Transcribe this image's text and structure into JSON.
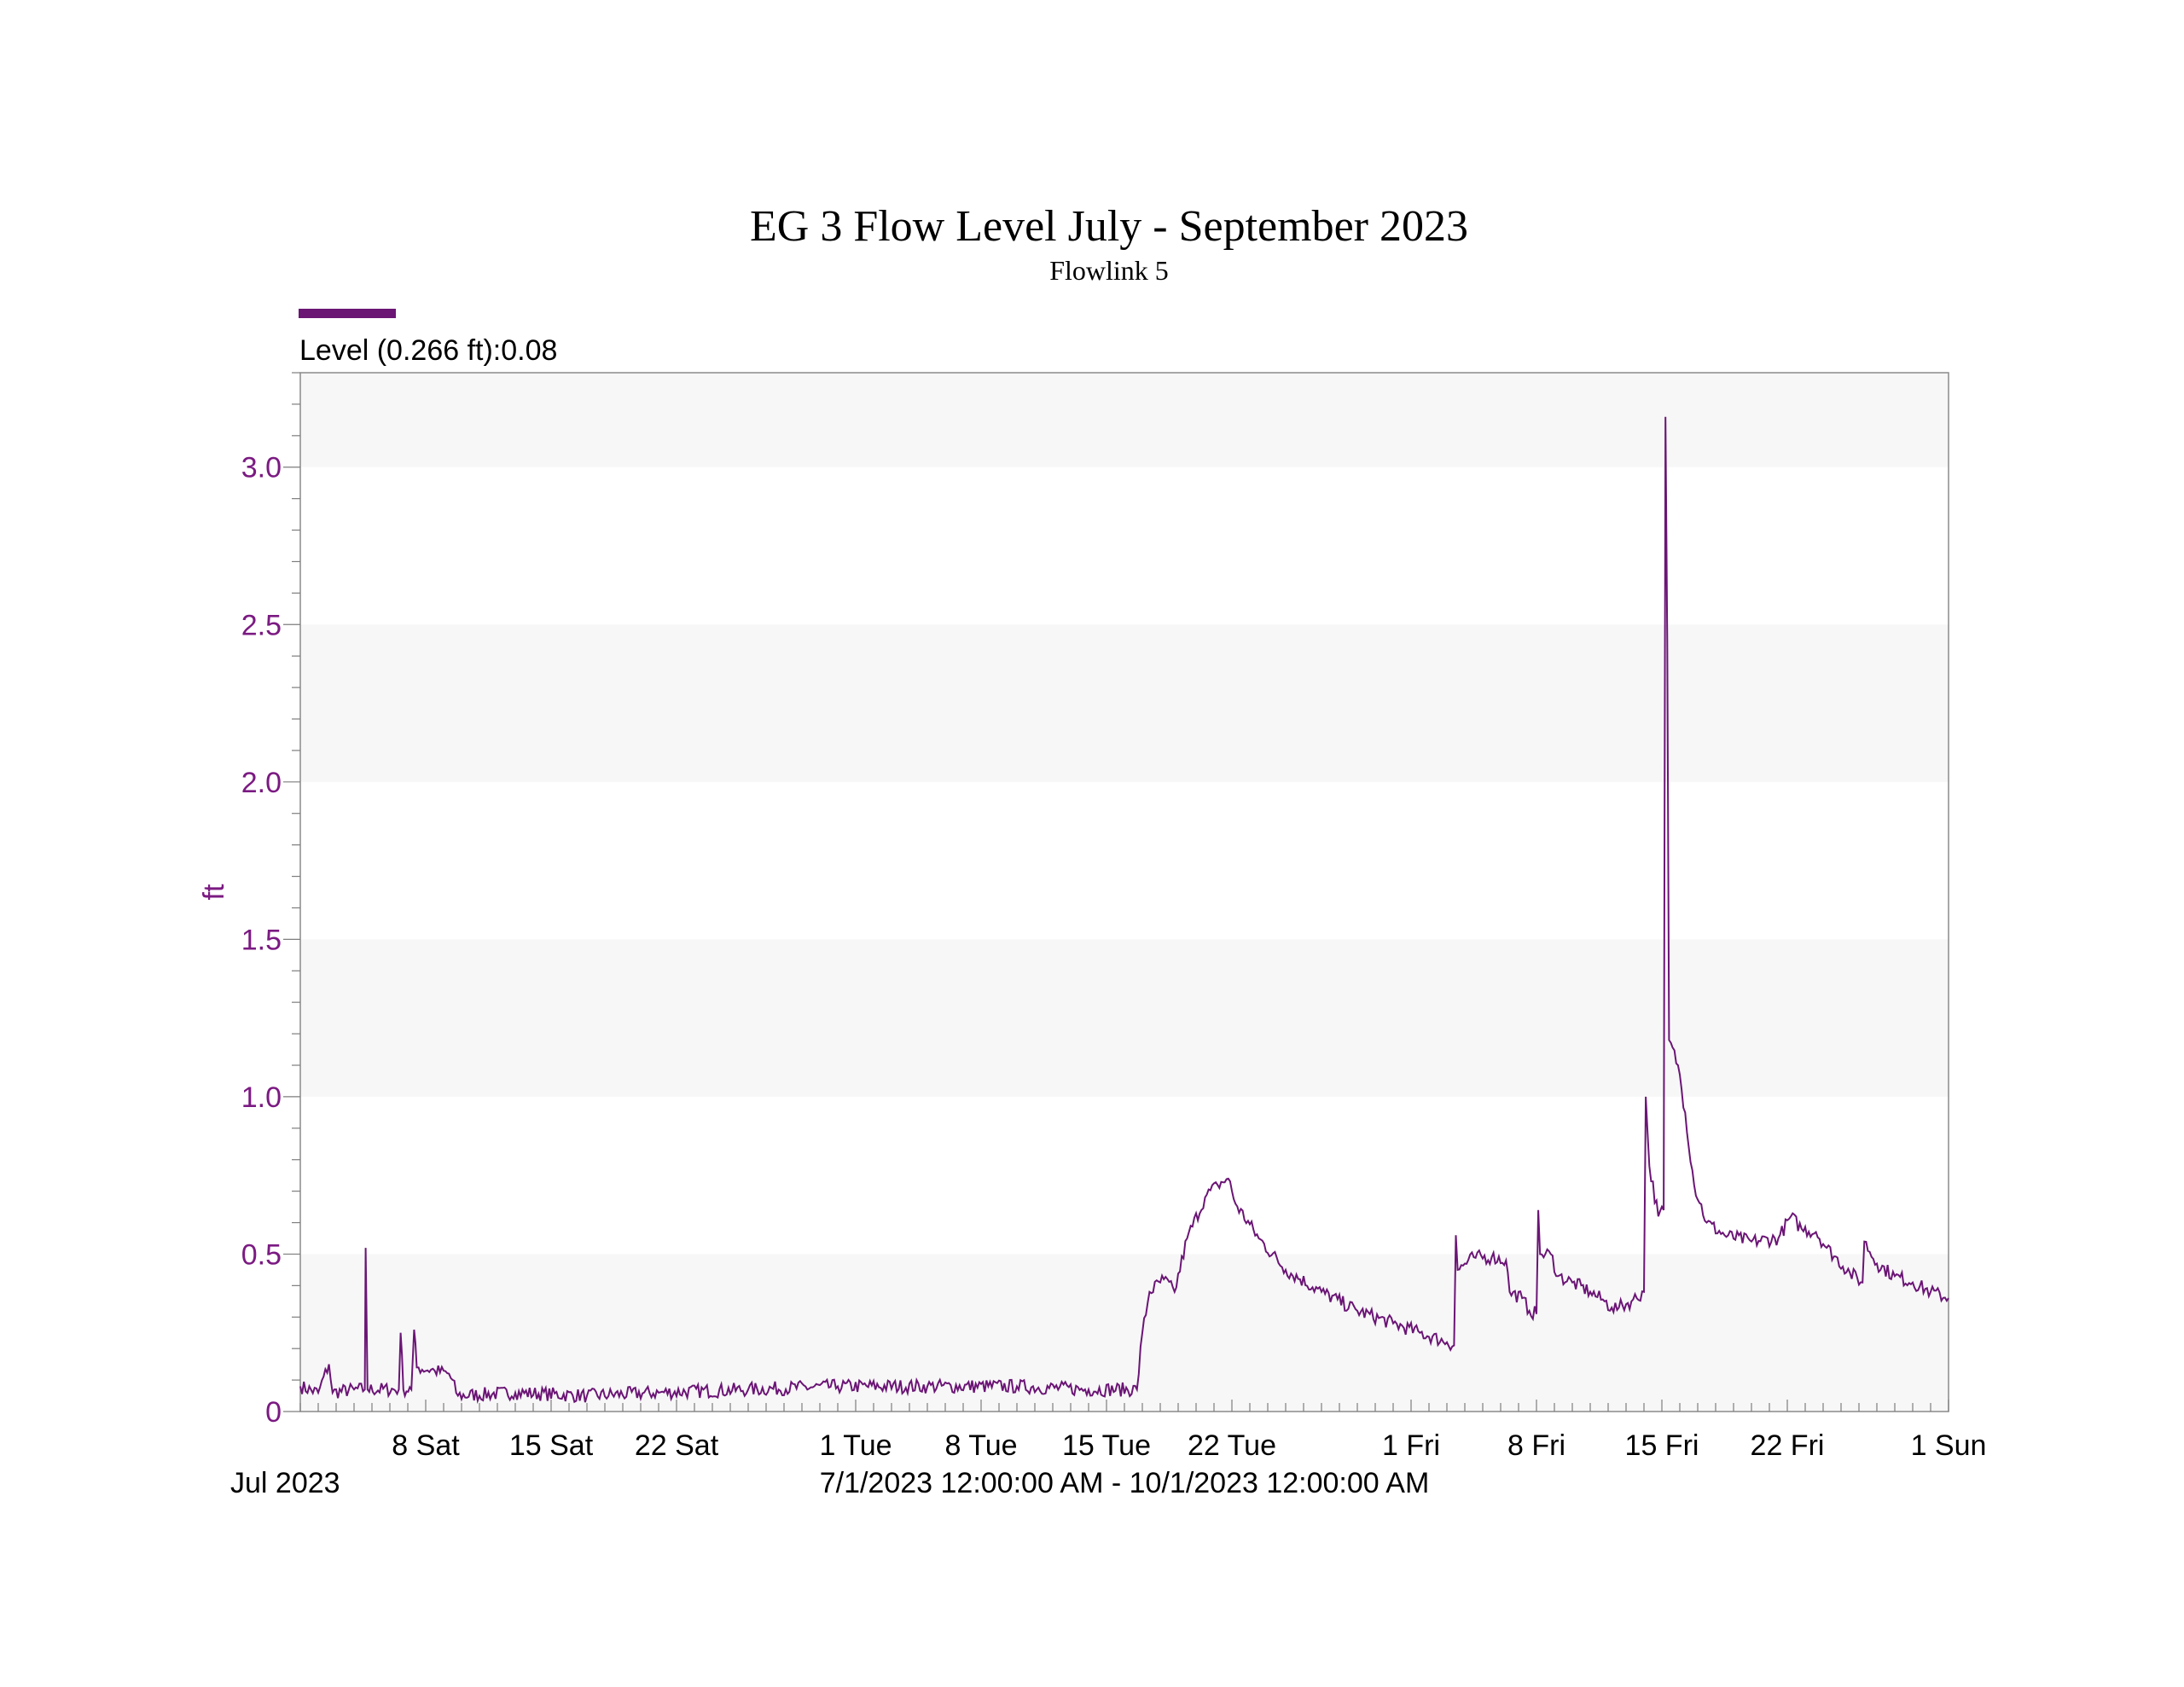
{
  "chart_data": {
    "type": "line",
    "title": "EG 3 Flow Level July - September 2023",
    "subtitle": "Flowlink 5",
    "xlabel": "",
    "ylabel": "ft",
    "legend": {
      "label": "Level (0.266 ft):0.08",
      "color": "#6b1575",
      "placement": "top-left"
    },
    "x_start_label": "Jul 2023",
    "x_range_label": "7/1/2023 12:00:00 AM - 10/1/2023 12:00:00 AM",
    "xlim_days": [
      0,
      92
    ],
    "ylim": [
      0,
      3.3
    ],
    "grid": "alternating horizontal bands",
    "band_color": "#f7f7f8",
    "line_color": "#6b1575",
    "tick_color": "#7b1a82",
    "y_ticks": [
      {
        "value": 0,
        "label": "0"
      },
      {
        "value": 0.5,
        "label": "0.5"
      },
      {
        "value": 1.0,
        "label": "1.0"
      },
      {
        "value": 1.5,
        "label": "1.5"
      },
      {
        "value": 2.0,
        "label": "2.0"
      },
      {
        "value": 2.5,
        "label": "2.5"
      },
      {
        "value": 3.0,
        "label": "3.0"
      }
    ],
    "x_ticks": [
      {
        "day": 7,
        "label": "8 Sat"
      },
      {
        "day": 14,
        "label": "15 Sat"
      },
      {
        "day": 21,
        "label": "22 Sat"
      },
      {
        "day": 31,
        "label": "1 Tue"
      },
      {
        "day": 38,
        "label": "8 Tue"
      },
      {
        "day": 45,
        "label": "15 Tue"
      },
      {
        "day": 52,
        "label": "22 Tue"
      },
      {
        "day": 62,
        "label": "1 Fri"
      },
      {
        "day": 69,
        "label": "8 Fri"
      },
      {
        "day": 76,
        "label": "15 Fri"
      },
      {
        "day": 83,
        "label": "22 Fri"
      },
      {
        "day": 92,
        "label": "1 Sun"
      }
    ],
    "series": [
      {
        "points": [
          [
            0,
            0.08
          ],
          [
            1.0,
            0.06
          ],
          [
            1.6,
            0.15
          ],
          [
            1.8,
            0.06
          ],
          [
            3.0,
            0.07
          ],
          [
            3.6,
            0.07
          ],
          [
            3.65,
            0.52
          ],
          [
            3.75,
            0.07
          ],
          [
            5.5,
            0.07
          ],
          [
            5.6,
            0.25
          ],
          [
            5.75,
            0.07
          ],
          [
            6.2,
            0.07
          ],
          [
            6.35,
            0.26
          ],
          [
            6.5,
            0.14
          ],
          [
            7.5,
            0.13
          ],
          [
            8.3,
            0.12
          ],
          [
            8.8,
            0.05
          ],
          [
            12,
            0.06
          ],
          [
            16,
            0.05
          ],
          [
            20,
            0.06
          ],
          [
            25,
            0.07
          ],
          [
            30,
            0.08
          ],
          [
            35,
            0.08
          ],
          [
            40,
            0.08
          ],
          [
            44,
            0.07
          ],
          [
            46.7,
            0.07
          ],
          [
            47.0,
            0.25
          ],
          [
            47.4,
            0.38
          ],
          [
            48.2,
            0.42
          ],
          [
            48.8,
            0.38
          ],
          [
            49.5,
            0.55
          ],
          [
            50.5,
            0.68
          ],
          [
            51.2,
            0.72
          ],
          [
            51.8,
            0.74
          ],
          [
            52.2,
            0.66
          ],
          [
            53.5,
            0.55
          ],
          [
            55,
            0.45
          ],
          [
            57,
            0.38
          ],
          [
            59,
            0.32
          ],
          [
            61,
            0.28
          ],
          [
            62.5,
            0.25
          ],
          [
            64.0,
            0.22
          ],
          [
            64.4,
            0.21
          ],
          [
            64.5,
            0.56
          ],
          [
            64.6,
            0.45
          ],
          [
            65.5,
            0.49
          ],
          [
            66.5,
            0.49
          ],
          [
            67.3,
            0.48
          ],
          [
            67.5,
            0.38
          ],
          [
            68.2,
            0.36
          ],
          [
            68.6,
            0.32
          ],
          [
            69.0,
            0.31
          ],
          [
            69.1,
            0.64
          ],
          [
            69.2,
            0.5
          ],
          [
            69.8,
            0.5
          ],
          [
            70.2,
            0.43
          ],
          [
            71,
            0.41
          ],
          [
            72,
            0.38
          ],
          [
            72.8,
            0.35
          ],
          [
            73.2,
            0.33
          ],
          [
            73.6,
            0.33
          ],
          [
            74.3,
            0.35
          ],
          [
            75.0,
            0.38
          ],
          [
            75.1,
            1.0
          ],
          [
            75.3,
            0.78
          ],
          [
            75.8,
            0.62
          ],
          [
            76.1,
            0.64
          ],
          [
            76.2,
            3.16
          ],
          [
            76.3,
            2.45
          ],
          [
            76.4,
            1.18
          ],
          [
            76.9,
            1.1
          ],
          [
            77.3,
            0.95
          ],
          [
            77.8,
            0.72
          ],
          [
            78.5,
            0.6
          ],
          [
            79.5,
            0.56
          ],
          [
            81,
            0.54
          ],
          [
            82.5,
            0.55
          ],
          [
            83.2,
            0.62
          ],
          [
            83.8,
            0.58
          ],
          [
            84.6,
            0.57
          ],
          [
            85.2,
            0.52
          ],
          [
            86.5,
            0.44
          ],
          [
            87.2,
            0.41
          ],
          [
            87.3,
            0.54
          ],
          [
            88,
            0.47
          ],
          [
            89,
            0.43
          ],
          [
            90,
            0.41
          ],
          [
            91,
            0.38
          ],
          [
            92,
            0.36
          ]
        ]
      }
    ]
  }
}
